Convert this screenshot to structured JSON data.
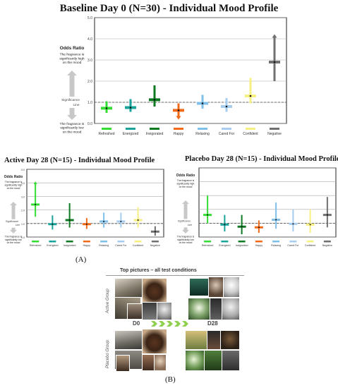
{
  "figure": {
    "label_a": "(A)",
    "label_b": "(B)"
  },
  "chart_data": [
    {
      "type": "errorbar",
      "title": "Baseline Day 0 (N=30) -  Individual Mood Profile",
      "ylim": [
        0,
        5
      ],
      "yticks": [
        "0.0",
        "1.0",
        "2.0",
        "3.0",
        "4.0",
        "5.0"
      ],
      "side_labels": {
        "odds_ratio": "Odds Ratio",
        "high": "The fragrance is significantly high on the mood",
        "significance": "Significance",
        "line": "Line",
        "low": "The fragrance is significantly low on the mood"
      },
      "reference_line": 1.0,
      "categories": [
        "Refreshed",
        "Energized",
        "Invigorated",
        "Happy",
        "Relaxing",
        "Cared For",
        "Confident",
        "Negative"
      ],
      "colors": [
        "#33dd33",
        "#1aa39a",
        "#0e7a22",
        "#f06a1a",
        "#7fc0ea",
        "#a6cdf0",
        "#f6ef82",
        "#707070"
      ],
      "estimate": [
        0.72,
        0.75,
        1.12,
        0.62,
        0.95,
        0.8,
        1.3,
        2.9
      ],
      "lower": [
        0.5,
        0.55,
        0.8,
        0.35,
        0.7,
        0.55,
        0.95,
        2.0
      ],
      "upper": [
        1.05,
        1.15,
        1.8,
        0.95,
        1.35,
        1.2,
        2.15,
        4.05
      ],
      "arrow_up": [
        false,
        false,
        false,
        false,
        false,
        false,
        false,
        true
      ],
      "arrow_down": [
        false,
        false,
        false,
        true,
        false,
        false,
        false,
        false
      ],
      "grid": true
    },
    {
      "type": "errorbar",
      "title": "Active  Day 28 (N=15) - Individual Mood Profile",
      "ylim": [
        0,
        5
      ],
      "yticks": [
        "0.0",
        "1.0",
        "2.0",
        "3.0",
        "4.0",
        "5.0"
      ],
      "side_labels": {
        "odds_ratio": "Odds Ratio",
        "high": "The fragrance is significantly high on the mood",
        "significance": "Significance",
        "line": "Line",
        "low": "The fragrance is significantly low on the mood"
      },
      "reference_line": 1.0,
      "categories": [
        "Refreshed",
        "Energized",
        "Invigorated",
        "Happy",
        "Relaxing",
        "Cared For",
        "Confident",
        "Negative"
      ],
      "colors": [
        "#33dd33",
        "#1aa39a",
        "#0e7a22",
        "#f06a1a",
        "#7fc0ea",
        "#a6cdf0",
        "#f6ef82",
        "#707070"
      ],
      "estimate": [
        2.4,
        0.95,
        1.25,
        0.95,
        1.15,
        1.15,
        1.25,
        0.4
      ],
      "lower": [
        1.5,
        0.55,
        0.7,
        0.6,
        0.7,
        0.7,
        0.7,
        0.1
      ],
      "upper": [
        3.9,
        1.6,
        2.5,
        1.4,
        1.8,
        1.8,
        2.2,
        0.8
      ],
      "arrow_up": [
        true,
        false,
        false,
        false,
        false,
        false,
        false,
        false
      ],
      "arrow_down": [
        false,
        false,
        false,
        false,
        false,
        false,
        false,
        false
      ],
      "grid": true
    },
    {
      "type": "errorbar",
      "title": "Placebo Day 28 (N=15) -  Individual Mood Profile",
      "ylim": [
        0,
        5
      ],
      "yticks": [],
      "side_labels": {
        "odds_ratio": "Odds Ratio",
        "high": "The fragrance is significantly high on the mood",
        "significance": "Significance",
        "line": "Line",
        "low": "The fragrance is significantly low on the mood"
      },
      "reference_line": 1.0,
      "categories": [
        "Refreshed",
        "Energized",
        "Invigorated",
        "Happy",
        "Relaxing",
        "Cared For",
        "Confident",
        "Negative"
      ],
      "colors": [
        "#33dd33",
        "#1aa39a",
        "#0e7a22",
        "#f06a1a",
        "#7fc0ea",
        "#a6cdf0",
        "#f6ef82",
        "#707070"
      ],
      "estimate": [
        1.6,
        0.9,
        0.75,
        0.7,
        1.25,
        0.95,
        0.9,
        1.6
      ],
      "lower": [
        1.0,
        0.4,
        0.2,
        0.3,
        0.6,
        0.4,
        0.3,
        0.7
      ],
      "upper": [
        3.0,
        1.6,
        1.6,
        1.2,
        2.5,
        2.0,
        2.0,
        2.9
      ],
      "arrow_up": [
        false,
        false,
        false,
        false,
        false,
        false,
        false,
        false
      ],
      "arrow_down": [
        false,
        false,
        false,
        false,
        false,
        false,
        false,
        false
      ],
      "grid": true
    }
  ],
  "pictures": {
    "title": "Top pictures  – all test conditions",
    "active_group": "Active Group",
    "placebo_group": "Placebo Group",
    "d0": "D0",
    "d28": "D28"
  }
}
